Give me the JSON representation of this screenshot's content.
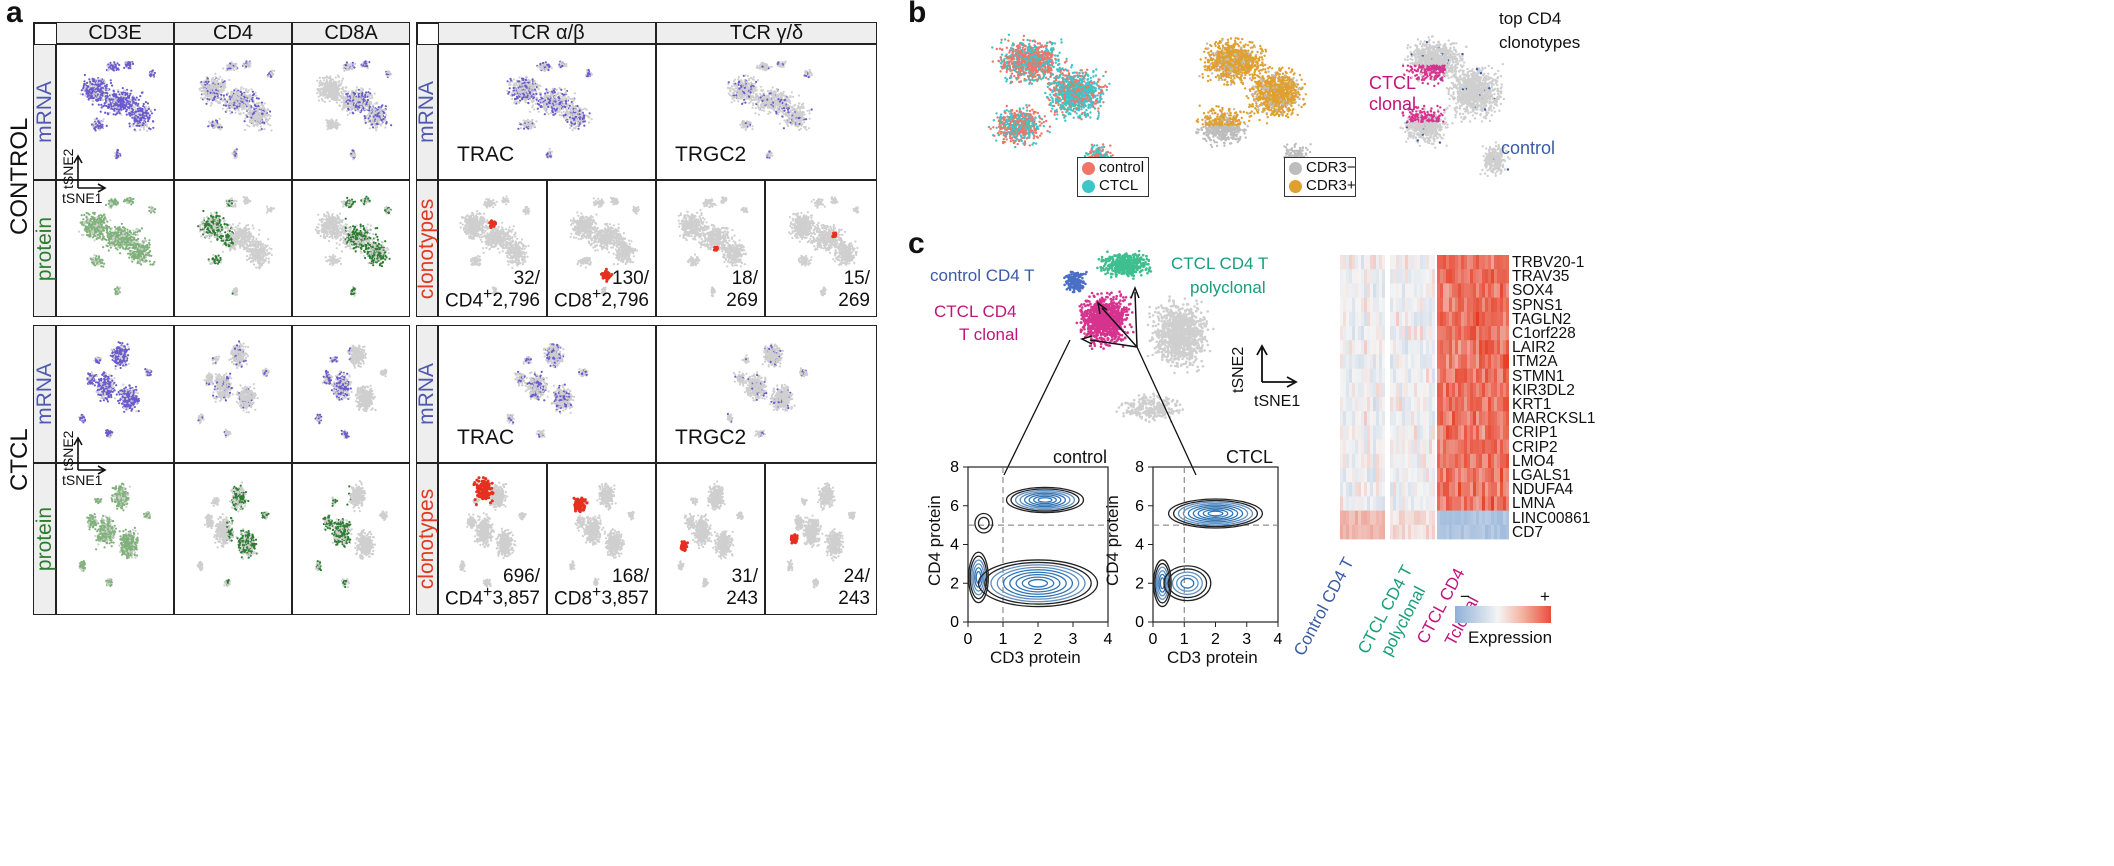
{
  "panels": {
    "a": "a",
    "b": "b",
    "c": "c"
  },
  "panel_a": {
    "rows": {
      "control": "CONTROL",
      "ctcl": "CTCL"
    },
    "left_headers": [
      "CD3E",
      "CD4",
      "CD8A"
    ],
    "right_headers": [
      "TCR α/β",
      "TCR γ/δ"
    ],
    "side_labels": {
      "mrna": "mRNA",
      "protein": "protein",
      "clonotypes": "clonotypes"
    },
    "axes": {
      "tsne1": "tSNE1",
      "tsne2": "tSNE2"
    },
    "genes": {
      "trac": "TRAC",
      "trgc2": "TRGC2"
    },
    "cd4_label": "CD4+",
    "cd8_label": "CD8+",
    "control_counts": [
      "32/\n2,796",
      "130/\n2,796",
      "18/\n269",
      "15/\n269"
    ],
    "ctcl_counts": [
      "696/\n3,857",
      "168/\n3,857",
      "31/\n243",
      "24/\n243"
    ],
    "colors": {
      "mrna": "#6a5acd",
      "protein": "#2e7d32",
      "clonotype": "#e53020",
      "background_points": "#cfcfcf"
    }
  },
  "panel_b": {
    "legend1": [
      "control",
      "CTCL"
    ],
    "legend1_colors": [
      "#f07468",
      "#3cc6c8"
    ],
    "legend2": [
      "CDR3−",
      "CDR3+"
    ],
    "legend2_colors": [
      "#bdbdbd",
      "#e0a030"
    ],
    "top_label_line1": "top CD4",
    "top_label_line2": "clonotypes",
    "ctcl_clonal_line1": "CTCL",
    "ctcl_clonal_line2": "clonal",
    "control_label": "control"
  },
  "panel_c": {
    "control_cd4t": "control CD4 T",
    "ctcl_cd4t_line1": "CTCL CD4 T",
    "ctcl_cd4t_line2": "polyclonal",
    "ctcl_clonal_line1": "CTCL CD4",
    "ctcl_clonal_line2": "T clonal",
    "tsne1": "tSNE1",
    "tsne2": "tSNE2",
    "contour_titles": [
      "control",
      "CTCL"
    ],
    "contour_xlabel": "CD3 protein",
    "contour_ylabel": "CD4 protein",
    "contour_xticks": [
      "0",
      "1",
      "2",
      "3",
      "4"
    ],
    "contour_yticks": [
      "0",
      "2",
      "4",
      "6",
      "8"
    ],
    "heatmap_genes": [
      "TRBV20-1",
      "TRAV35",
      "SOX4",
      "SPNS1",
      "TAGLN2",
      "C1orf228",
      "LAIR2",
      "ITM2A",
      "STMN1",
      "KIR3DL2",
      "KRT1",
      "MARCKSL1",
      "CRIP1",
      "CRIP2",
      "LMO4",
      "LGALS1",
      "NDUFA4",
      "LMNA",
      "LINC00861",
      "CD7"
    ],
    "heatmap_groups": [
      "Control CD4 T",
      "CTCL CD4 T",
      "polyclonal",
      "CTCL CD4",
      "Tclonal"
    ],
    "heatmap_group_colors": [
      "#3b5ba5",
      "#1a9e77",
      "#c0157a"
    ],
    "expression_label": "Expression",
    "expression_minus": "−",
    "expression_plus": "+",
    "heatmap_colors": {
      "low": "#8fb0d8",
      "mid": "#f4f4f4",
      "high": "#e8503a"
    }
  }
}
